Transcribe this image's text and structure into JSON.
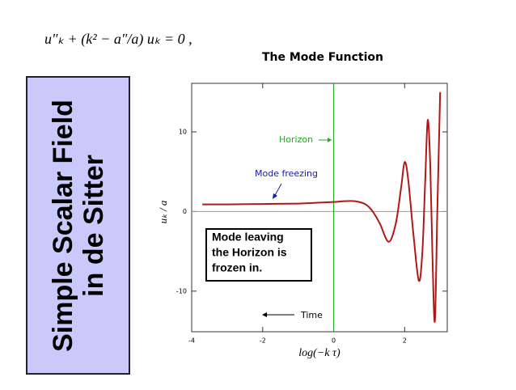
{
  "equation": "u″ₖ + (k² − a″/a) uₖ = 0 ,",
  "side_title": [
    "Simple Scalar Field",
    "in de Sitter"
  ],
  "chart_data": {
    "type": "line",
    "title": "The Mode Function",
    "x_label": "log(−k τ)",
    "y_label": "uₖ / a",
    "x": [
      -3.7,
      -3,
      -2,
      -1,
      -0.5,
      0,
      0.3,
      0.6,
      0.9,
      1.1,
      1.3,
      1.55,
      1.75,
      1.9,
      2.0,
      2.1,
      2.25,
      2.4,
      2.5,
      2.58,
      2.65,
      2.72,
      2.78,
      2.85,
      2.92,
      3.0
    ],
    "series": [
      {
        "color": "#b01818",
        "values": [
          0.9,
          0.9,
          0.95,
          1.0,
          1.1,
          1.2,
          1.3,
          1.3,
          0.9,
          0,
          -1.5,
          -3.8,
          -1.5,
          3,
          6.2,
          4,
          -3,
          -8.7,
          -5,
          4,
          11.5,
          6,
          -5,
          -13.8,
          0,
          15
        ]
      }
    ],
    "xlim": [
      -4,
      3.2
    ],
    "ylim": [
      -15.1,
      16.1
    ],
    "xticks": [
      -4,
      -2,
      0,
      2
    ],
    "yticks": [
      -10,
      0,
      10
    ],
    "reference_lines": {
      "x": 0,
      "y": 0
    },
    "annotations": [
      "Horizon",
      "Mode freezing",
      "Time"
    ],
    "note": [
      "Mode leaving",
      "the Horizon is",
      "frozen in."
    ]
  }
}
